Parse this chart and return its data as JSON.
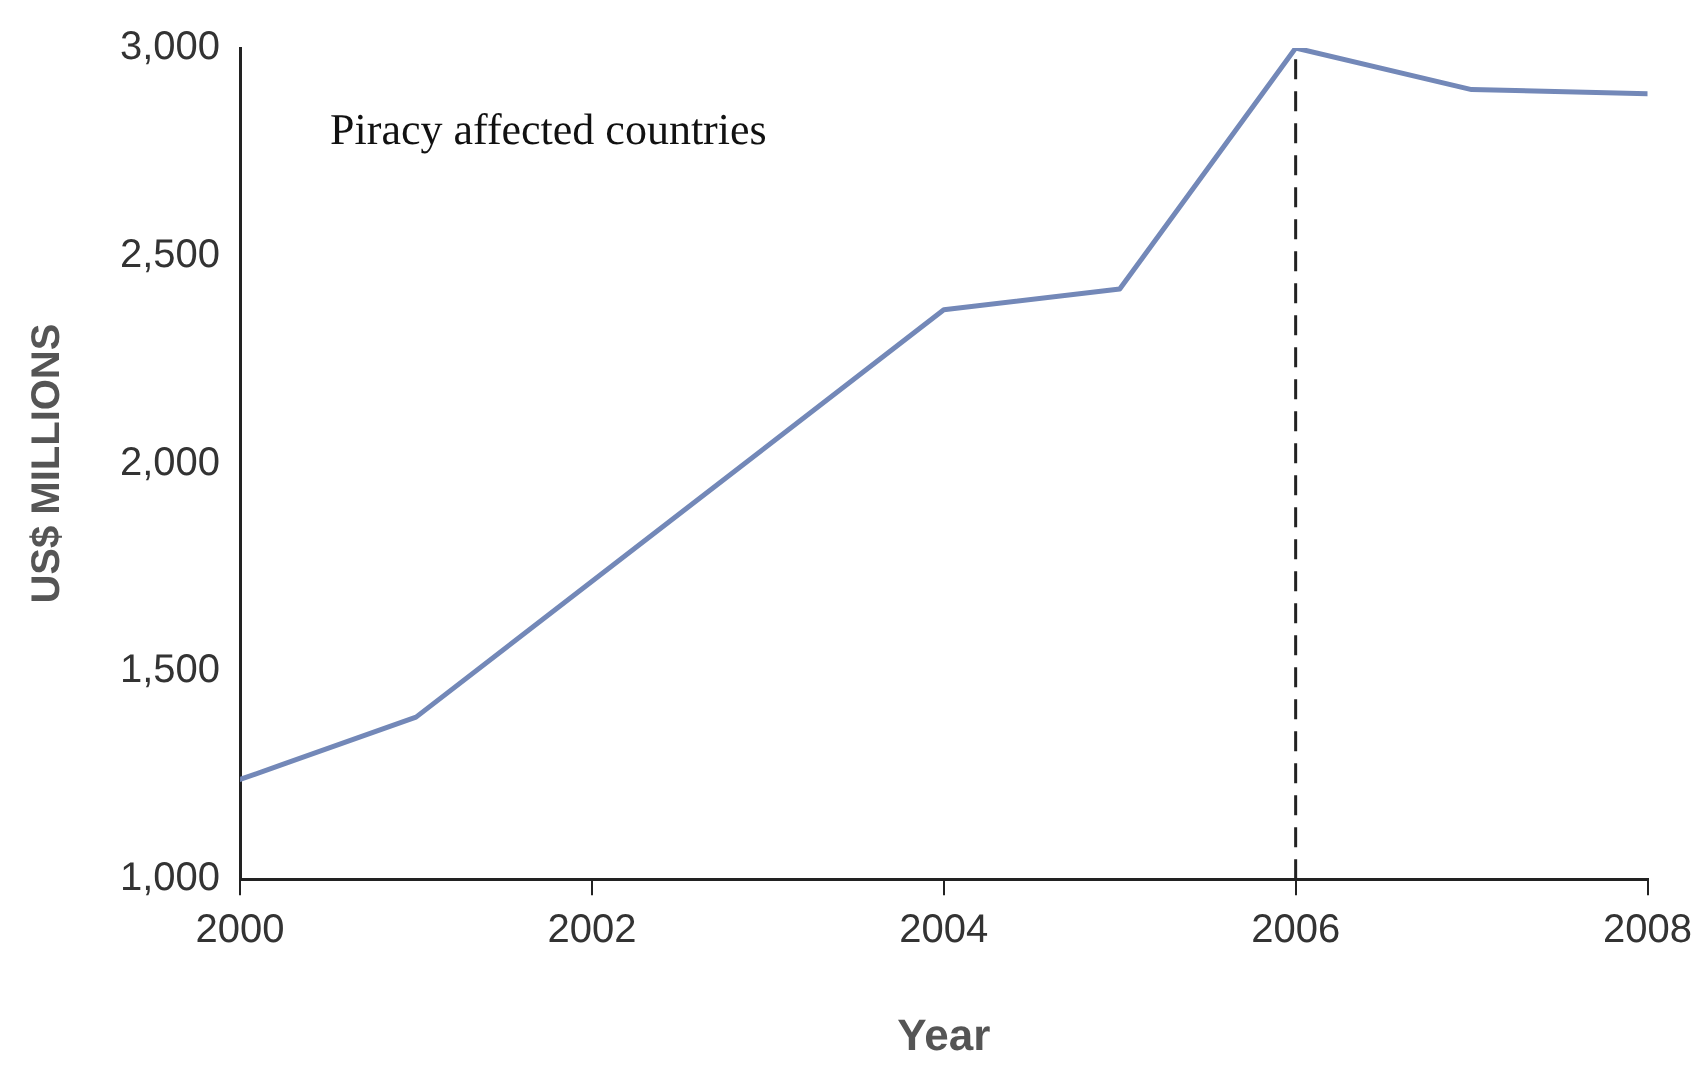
{
  "chart_data": {
    "type": "line",
    "xlabel": "Year",
    "ylabel": "US$ MILLIONS",
    "x": [
      2000,
      2001,
      2004,
      2005,
      2006,
      2007,
      2008
    ],
    "series": [
      {
        "color": "#7388b8",
        "values": [
          1240,
          1390,
          2370,
          2420,
          3000,
          2900,
          2890
        ]
      }
    ],
    "xlim": [
      2000,
      2008
    ],
    "xticks": [
      2000,
      2002,
      2004,
      2006,
      2008
    ],
    "ylim": [
      1000,
      3000
    ],
    "yticks": [
      {
        "value": 1000,
        "label": "1,000"
      },
      {
        "value": 1500,
        "label": "1,500"
      },
      {
        "value": 2000,
        "label": "2,000"
      },
      {
        "value": 2500,
        "label": "2,500"
      },
      {
        "value": 3000,
        "label": "3,000"
      }
    ],
    "ref_lines": [
      {
        "axis": "x",
        "value": 2006,
        "color": "#222222",
        "line_style": "dashed"
      }
    ],
    "annotations": [
      "Piracy affected countries"
    ],
    "grid": false,
    "legend": false,
    "marker": "none",
    "line_style": "solid"
  }
}
